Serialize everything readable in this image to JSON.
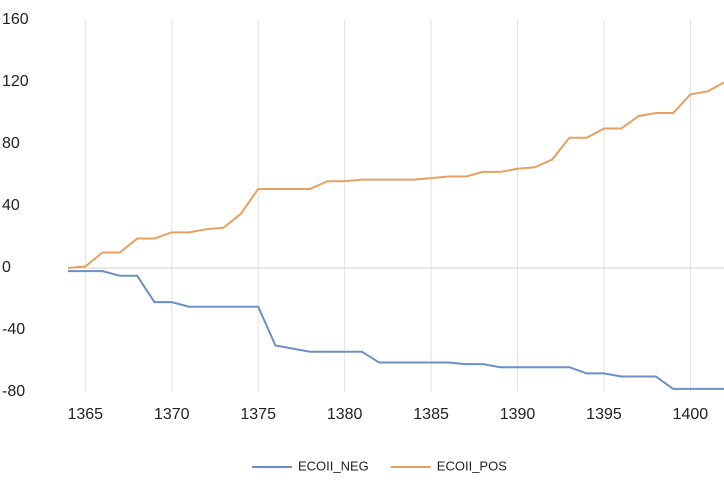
{
  "chart_data": {
    "type": "line",
    "x": [
      1364,
      1365,
      1366,
      1367,
      1368,
      1369,
      1370,
      1371,
      1372,
      1373,
      1374,
      1375,
      1376,
      1377,
      1378,
      1379,
      1380,
      1381,
      1382,
      1383,
      1384,
      1385,
      1386,
      1387,
      1388,
      1389,
      1390,
      1391,
      1392,
      1393,
      1394,
      1395,
      1396,
      1397,
      1398,
      1399,
      1400,
      1401,
      1402
    ],
    "series": [
      {
        "name": "ECOII_NEG",
        "color": "#6b8fc6",
        "values": [
          -2,
          -2,
          -2,
          -5,
          -5,
          -22,
          -22,
          -25,
          -25,
          -25,
          -25,
          -25,
          -50,
          -52,
          -54,
          -54,
          -54,
          -54,
          -61,
          -61,
          -61,
          -61,
          -61,
          -62,
          -62,
          -64,
          -64,
          -64,
          -64,
          -64,
          -68,
          -68,
          -70,
          -70,
          -70,
          -78,
          -78,
          -78,
          -78
        ]
      },
      {
        "name": "ECOII_POS",
        "color": "#e8a060",
        "values": [
          0,
          1,
          10,
          10,
          19,
          19,
          23,
          23,
          25,
          26,
          35,
          51,
          51,
          51,
          51,
          56,
          56,
          57,
          57,
          57,
          57,
          58,
          59,
          59,
          62,
          62,
          64,
          65,
          70,
          84,
          84,
          90,
          90,
          98,
          100,
          100,
          112,
          114,
          120
        ]
      }
    ],
    "xlim": [
      1364,
      1402
    ],
    "xticks": [
      1365,
      1370,
      1375,
      1380,
      1385,
      1390,
      1395,
      1400
    ],
    "ylim": [
      -80,
      160
    ],
    "yticks": [
      -80,
      -40,
      0,
      40,
      80,
      120,
      160
    ],
    "grid": "x",
    "legend": "bottom"
  }
}
